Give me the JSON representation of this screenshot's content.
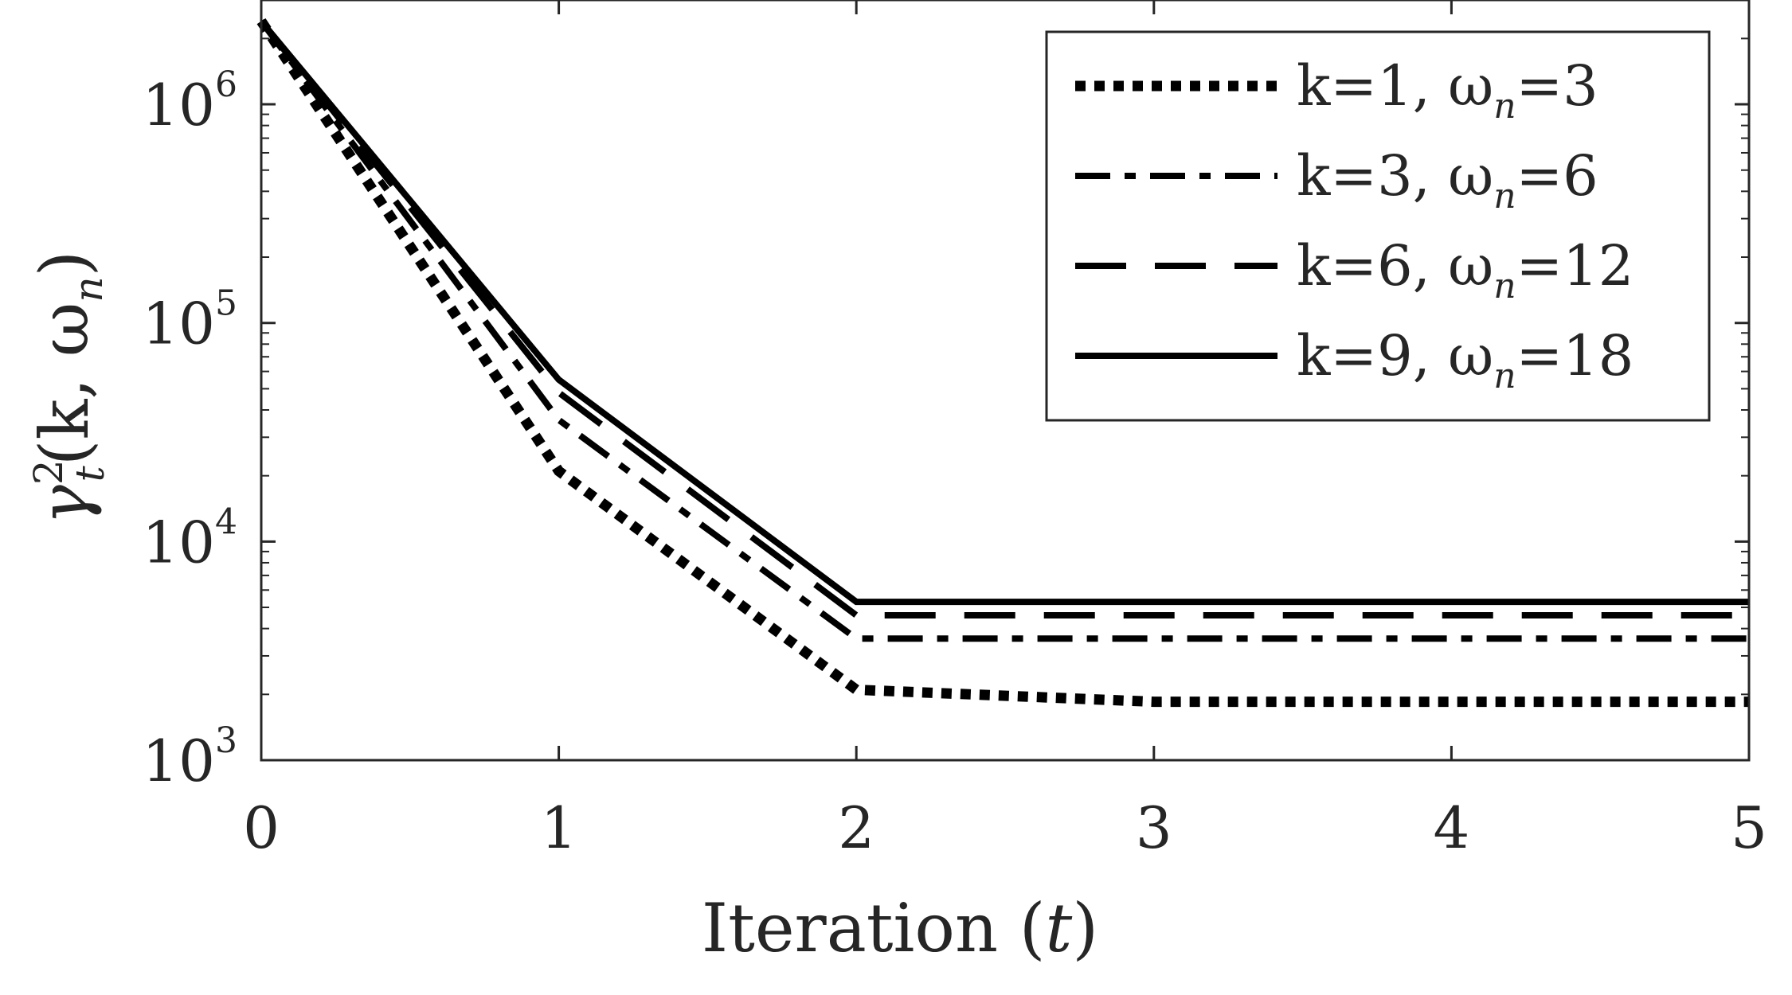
{
  "chart_data": {
    "type": "line",
    "xlabel": "Iteration (t)",
    "xlabel_main": "Iteration (",
    "xlabel_var": "t",
    "xlabel_close": ")",
    "ylabel": "γ_t^2(k, ω_n)",
    "ylabel_parts": {
      "gamma": "γ",
      "sup": "2",
      "sub": "t",
      "args": "(k, ω",
      "args_sub": "n",
      "close": ")"
    },
    "x": [
      0,
      1,
      2,
      3,
      4,
      5
    ],
    "xlim": [
      0,
      5
    ],
    "ylim": [
      1000,
      3000000
    ],
    "yscale": "log",
    "grid": false,
    "legend_position": "top-right",
    "xticks": [
      {
        "value": 0,
        "label": "0"
      },
      {
        "value": 1,
        "label": "1"
      },
      {
        "value": 2,
        "label": "2"
      },
      {
        "value": 3,
        "label": "3"
      },
      {
        "value": 4,
        "label": "4"
      },
      {
        "value": 5,
        "label": "5"
      }
    ],
    "yticks": [
      {
        "value": 1000,
        "base": "10",
        "exp": "3"
      },
      {
        "value": 10000,
        "base": "10",
        "exp": "4"
      },
      {
        "value": 100000,
        "base": "10",
        "exp": "5"
      },
      {
        "value": 1000000,
        "base": "10",
        "exp": "6"
      }
    ],
    "series": [
      {
        "name": "k=1, ω_n=3",
        "label_prefix": "k=1, ω",
        "label_sub": "n",
        "label_suffix": "=3",
        "style": "dotted",
        "values": [
          2400000,
          21000,
          2100,
          1850,
          1850,
          1850
        ]
      },
      {
        "name": "k=3, ω_n=6",
        "label_prefix": "k=3, ω",
        "label_sub": "n",
        "label_suffix": "=6",
        "style": "dashdot",
        "values": [
          2400000,
          36000,
          3600,
          3600,
          3600,
          3600
        ]
      },
      {
        "name": "k=6, ω_n=12",
        "label_prefix": "k=6, ω",
        "label_sub": "n",
        "label_suffix": "=12",
        "style": "dashed",
        "values": [
          2400000,
          48000,
          4600,
          4600,
          4600,
          4600
        ]
      },
      {
        "name": "k=9, ω_n=18",
        "label_prefix": "k=9, ω",
        "label_sub": "n",
        "label_suffix": "=18",
        "style": "solid",
        "values": [
          2400000,
          55000,
          5300,
          5300,
          5300,
          5300
        ]
      }
    ],
    "colors": {
      "axis": "#262626",
      "line": "#000000",
      "background": "#ffffff"
    }
  }
}
